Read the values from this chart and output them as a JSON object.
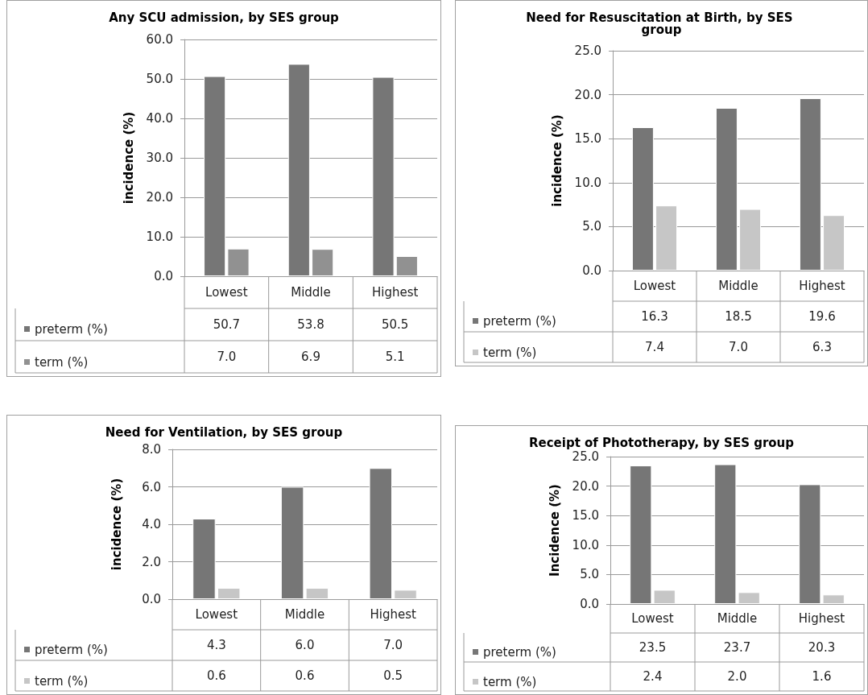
{
  "chart_data": [
    {
      "type": "bar",
      "title": "Any SCU admission, by SES group",
      "ylabel": "incidence (%)",
      "categories": [
        "Lowest",
        "Middle",
        "Highest"
      ],
      "series": [
        {
          "name": "preterm (%)",
          "color": "#767676",
          "values": [
            50.7,
            53.8,
            50.5
          ],
          "value_labels": [
            "50.7",
            "53.8",
            "50.5"
          ]
        },
        {
          "name": "term (%)",
          "color": "#919191",
          "values": [
            7.0,
            6.9,
            5.1
          ],
          "value_labels": [
            "7.0",
            "6.9",
            "5.1"
          ]
        }
      ],
      "ylim": [
        0,
        60
      ],
      "yticks": [
        {
          "value": 0,
          "label": "0.0"
        },
        {
          "value": 10,
          "label": "10.0"
        },
        {
          "value": 20,
          "label": "20.0"
        },
        {
          "value": 30,
          "label": "30.0"
        },
        {
          "value": 40,
          "label": "40.0"
        },
        {
          "value": 50,
          "label": "50.0"
        },
        {
          "value": 60,
          "label": "60.0"
        }
      ],
      "grid": "y",
      "legend": "bottom left"
    },
    {
      "type": "bar",
      "title": "Need for Resuscitation at Birth, by SES group",
      "ylabel": "incidence (%)",
      "categories": [
        "Lowest",
        "Middle",
        "Highest"
      ],
      "series": [
        {
          "name": "preterm (%)",
          "color": "#767676",
          "values": [
            16.3,
            18.5,
            19.6
          ],
          "value_labels": [
            "16.3",
            "18.5",
            "19.6"
          ]
        },
        {
          "name": "term (%)",
          "color": "#c6c6c6",
          "values": [
            7.4,
            7.0,
            6.3
          ],
          "value_labels": [
            "7.4",
            "7.0",
            "6.3"
          ]
        }
      ],
      "ylim": [
        0,
        25
      ],
      "yticks": [
        {
          "value": 0,
          "label": "0.0"
        },
        {
          "value": 5,
          "label": "5.0"
        },
        {
          "value": 10,
          "label": "10.0"
        },
        {
          "value": 15,
          "label": "15.0"
        },
        {
          "value": 20,
          "label": "20.0"
        },
        {
          "value": 25,
          "label": "25.0"
        }
      ],
      "grid": "y",
      "legend": "bottom left"
    },
    {
      "type": "bar",
      "title": "Need for Ventilation, by SES group",
      "ylabel": "incidence (%)",
      "categories": [
        "Lowest",
        "Middle",
        "Highest"
      ],
      "series": [
        {
          "name": "preterm (%)",
          "color": "#767676",
          "values": [
            4.3,
            6.0,
            7.0
          ],
          "value_labels": [
            "4.3",
            "6.0",
            "7.0"
          ]
        },
        {
          "name": "term (%)",
          "color": "#c6c6c6",
          "values": [
            0.6,
            0.6,
            0.5
          ],
          "value_labels": [
            "0.6",
            "0.6",
            "0.5"
          ]
        }
      ],
      "ylim": [
        0,
        8
      ],
      "yticks": [
        {
          "value": 0,
          "label": "0.0"
        },
        {
          "value": 2,
          "label": "2.0"
        },
        {
          "value": 4,
          "label": "4.0"
        },
        {
          "value": 6,
          "label": "6.0"
        },
        {
          "value": 8,
          "label": "8.0"
        }
      ],
      "grid": "y",
      "legend": "bottom left"
    },
    {
      "type": "bar",
      "title": "Receipt of Phototherapy, by SES group",
      "ylabel": "Incidence (%)",
      "categories": [
        "Lowest",
        "Middle",
        "Highest"
      ],
      "series": [
        {
          "name": "preterm (%)",
          "color": "#767676",
          "values": [
            23.5,
            23.7,
            20.3
          ],
          "value_labels": [
            "23.5",
            "23.7",
            "20.3"
          ]
        },
        {
          "name": "term (%)",
          "color": "#c6c6c6",
          "values": [
            2.4,
            2.0,
            1.6
          ],
          "value_labels": [
            "2.4",
            "2.0",
            "1.6"
          ]
        }
      ],
      "ylim": [
        0,
        25
      ],
      "yticks": [
        {
          "value": 0,
          "label": "0.0"
        },
        {
          "value": 5,
          "label": "5.0"
        },
        {
          "value": 10,
          "label": "10.0"
        },
        {
          "value": 15,
          "label": "15.0"
        },
        {
          "value": 20,
          "label": "20.0"
        },
        {
          "value": 25,
          "label": "25.0"
        }
      ],
      "grid": "y",
      "legend": "bottom left"
    }
  ]
}
